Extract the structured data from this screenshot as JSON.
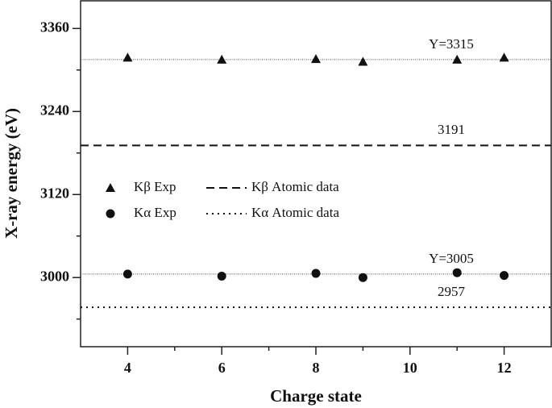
{
  "chart_data": {
    "type": "scatter",
    "xlabel": "Charge state",
    "ylabel": "X-ray energy (eV)",
    "xlim": [
      3,
      13
    ],
    "xticks": [
      4,
      6,
      8,
      10,
      12
    ],
    "xminorticks": [
      5,
      7,
      9,
      11
    ],
    "ylim": [
      2900,
      3400
    ],
    "yticks": [
      3000,
      3120,
      3240,
      3360
    ],
    "yminorticks": [
      2940,
      3060,
      3180,
      3300
    ],
    "series": [
      {
        "name": "Kβ Exp",
        "marker": "triangle",
        "color": "#111111",
        "x": [
          4,
          6,
          8,
          9,
          11,
          12
        ],
        "values": [
          3318,
          3315,
          3316,
          3312,
          3315,
          3318
        ]
      },
      {
        "name": "Kα Exp",
        "marker": "circle",
        "color": "#111111",
        "x": [
          4,
          6,
          8,
          9,
          11,
          12
        ],
        "values": [
          3005,
          3002,
          3006,
          3000,
          3007,
          3003
        ]
      }
    ],
    "reference_lines": [
      {
        "value": 3315,
        "label": "Y=3315",
        "style": "fit"
      },
      {
        "name": "Kβ Atomic data",
        "value": 3191,
        "label": "3191",
        "style": "dashed"
      },
      {
        "value": 3005,
        "label": "Y=3005",
        "style": "fit"
      },
      {
        "name": "Kα Atomic data",
        "value": 2957,
        "label": "2957",
        "style": "dotted"
      }
    ]
  }
}
